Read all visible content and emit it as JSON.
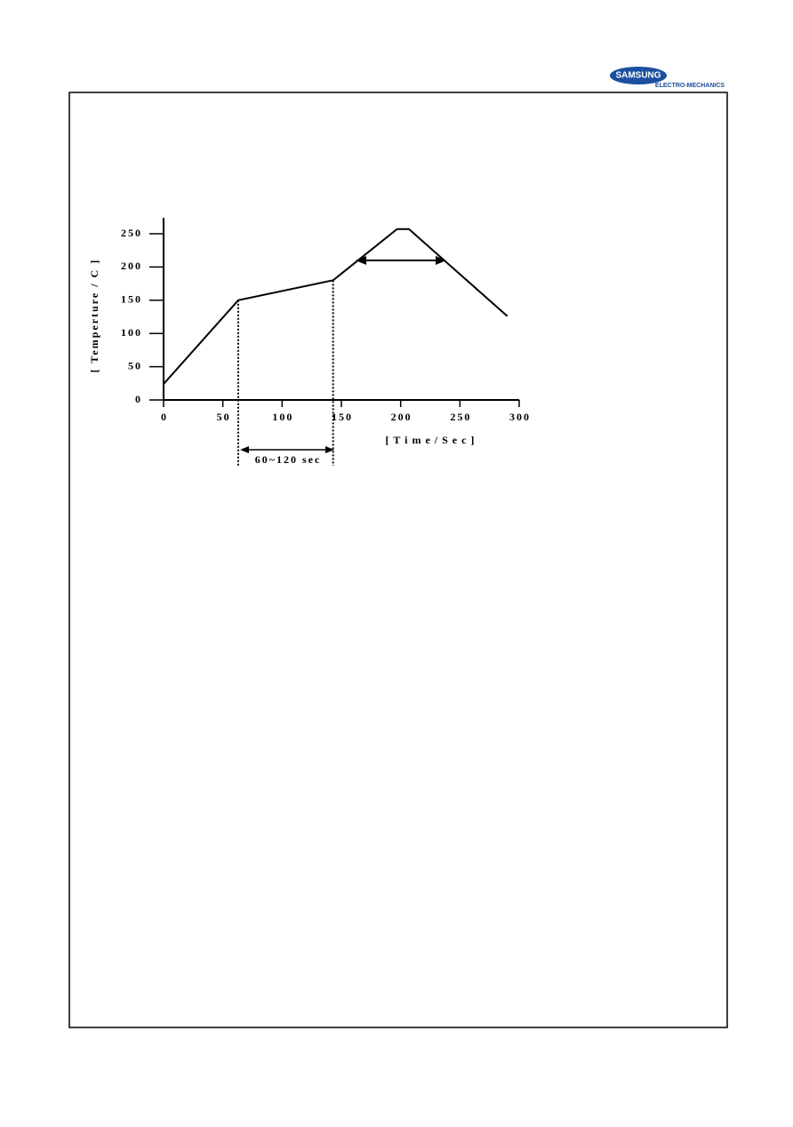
{
  "logo": {
    "brand": "SAMSUNG",
    "division": "ELECTRO-MECHANICS"
  },
  "chart_data": {
    "type": "line",
    "x_label": "[ T i m e / S e c ]",
    "y_label": "[ Temperture / C ]",
    "annotation": "60~120 sec",
    "x": [
      0,
      63,
      143,
      197,
      207,
      290
    ],
    "values": [
      24,
      150,
      180,
      257,
      257,
      126
    ],
    "color": "#000000",
    "xlim": [
      0,
      300
    ],
    "xticks": [
      0,
      50,
      100,
      150,
      200,
      250,
      300
    ],
    "ylim": [
      0,
      275
    ],
    "yticks": [
      0,
      50,
      100,
      150,
      200,
      250
    ],
    "grid": false
  }
}
